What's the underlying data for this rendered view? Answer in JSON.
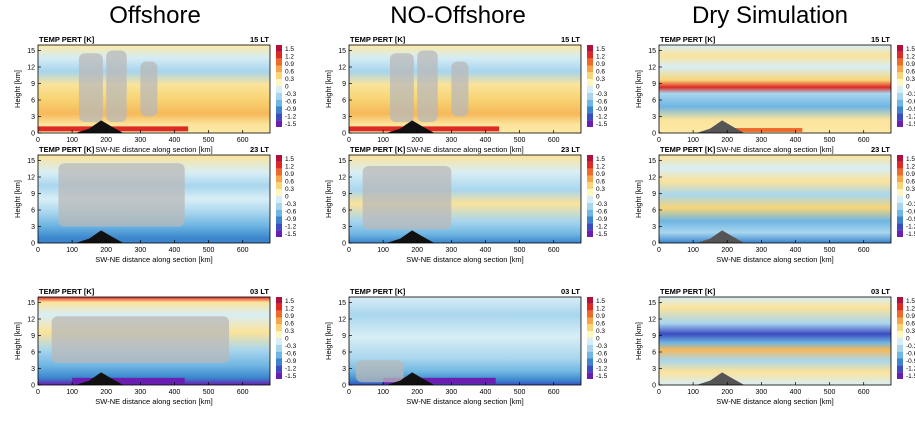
{
  "figure": {
    "columns": [
      "Offshore",
      "NO-Offshore",
      "Dry Simulation"
    ],
    "rows": [
      "15 LT",
      "23 LT",
      "03 LT"
    ],
    "panel_title": "TEMP PERT [K]",
    "ylabel": "Height [km]",
    "xlabel": "SW-NE distance along section [km]",
    "colorbar_labels": [
      "1.5",
      "1.2",
      "0.9",
      "0.6",
      "0.3",
      "0",
      "-0.3",
      "-0.6",
      "-0.9",
      "-1.2",
      "-1.5"
    ]
  },
  "chart_data": [
    {
      "type": "heatmap",
      "panel": "Offshore 15 LT",
      "title": "TEMP PERT [K]",
      "time": "15 LT",
      "xlabel": "SW-NE distance along section [km]",
      "ylabel": "Height [km]",
      "xlim": [
        0,
        680
      ],
      "ylim": [
        0,
        16
      ],
      "xticks": [
        0,
        100,
        200,
        300,
        400,
        500,
        600
      ],
      "yticks": [
        0,
        3,
        6,
        9,
        12,
        15
      ],
      "colorbar": [
        1.5,
        1.2,
        0.9,
        0.6,
        0.3,
        0,
        -0.3,
        -0.6,
        -0.9,
        -1.2,
        -1.5
      ]
    },
    {
      "type": "heatmap",
      "panel": "NO-Offshore 15 LT",
      "title": "TEMP PERT [K]",
      "time": "15 LT",
      "xlabel": "SW-NE distance along section [km]",
      "ylabel": "Height [km]",
      "xlim": [
        0,
        680
      ],
      "ylim": [
        0,
        16
      ],
      "xticks": [
        0,
        100,
        200,
        300,
        400,
        500,
        600
      ],
      "yticks": [
        0,
        3,
        6,
        9,
        12,
        15
      ],
      "colorbar": [
        1.5,
        1.2,
        0.9,
        0.6,
        0.3,
        0,
        -0.3,
        -0.6,
        -0.9,
        -1.2,
        -1.5
      ]
    },
    {
      "type": "heatmap",
      "panel": "Dry Simulation 15 LT",
      "title": "TEMP PERT [K]",
      "time": "15 LT",
      "xlabel": "SW-NE distance along section [km]",
      "ylabel": "Height [km]",
      "xlim": [
        0,
        680
      ],
      "ylim": [
        0,
        16
      ],
      "xticks": [
        0,
        100,
        200,
        300,
        400,
        500,
        600
      ],
      "yticks": [
        0,
        3,
        6,
        9,
        12,
        15
      ],
      "colorbar": [
        1.5,
        1.2,
        0.9,
        0.6,
        0.3,
        0,
        -0.3,
        -0.6,
        -0.9,
        -1.2,
        -1.5
      ]
    },
    {
      "type": "heatmap",
      "panel": "Offshore 23 LT",
      "title": "TEMP PERT [K]",
      "time": "23 LT",
      "xlabel": "SW-NE distance along section [km]",
      "ylabel": "Height [km]",
      "xlim": [
        0,
        680
      ],
      "ylim": [
        0,
        16
      ],
      "xticks": [
        0,
        100,
        200,
        300,
        400,
        500,
        600
      ],
      "yticks": [
        0,
        3,
        6,
        9,
        12,
        15
      ],
      "colorbar": [
        1.5,
        1.2,
        0.9,
        0.6,
        0.3,
        0,
        -0.3,
        -0.6,
        -0.9,
        -1.2,
        -1.5
      ]
    },
    {
      "type": "heatmap",
      "panel": "NO-Offshore 23 LT",
      "title": "TEMP PERT [K]",
      "time": "23 LT",
      "xlabel": "SW-NE distance along section [km]",
      "ylabel": "Height [km]",
      "xlim": [
        0,
        680
      ],
      "ylim": [
        0,
        16
      ],
      "xticks": [
        0,
        100,
        200,
        300,
        400,
        500,
        600
      ],
      "yticks": [
        0,
        3,
        6,
        9,
        12,
        15
      ],
      "colorbar": [
        1.5,
        1.2,
        0.9,
        0.6,
        0.3,
        0,
        -0.3,
        -0.6,
        -0.9,
        -1.2,
        -1.5
      ]
    },
    {
      "type": "heatmap",
      "panel": "Dry Simulation 23 LT",
      "title": "TEMP PERT [K]",
      "time": "23 LT",
      "xlabel": "SW-NE distance along section [km]",
      "ylabel": "Height [km]",
      "xlim": [
        0,
        680
      ],
      "ylim": [
        0,
        16
      ],
      "xticks": [
        0,
        100,
        200,
        300,
        400,
        500,
        600
      ],
      "yticks": [
        0,
        3,
        6,
        9,
        12,
        15
      ],
      "colorbar": [
        1.5,
        1.2,
        0.9,
        0.6,
        0.3,
        0,
        -0.3,
        -0.6,
        -0.9,
        -1.2,
        -1.5
      ]
    },
    {
      "type": "heatmap",
      "panel": "Offshore 03 LT",
      "title": "TEMP PERT [K]",
      "time": "03 LT",
      "xlabel": "SW-NE distance along section [km]",
      "ylabel": "Height [km]",
      "xlim": [
        0,
        680
      ],
      "ylim": [
        0,
        16
      ],
      "xticks": [
        0,
        100,
        200,
        300,
        400,
        500,
        600
      ],
      "yticks": [
        0,
        3,
        6,
        9,
        12,
        15
      ],
      "colorbar": [
        1.5,
        1.2,
        0.9,
        0.6,
        0.3,
        0,
        -0.3,
        -0.6,
        -0.9,
        -1.2,
        -1.5
      ]
    },
    {
      "type": "heatmap",
      "panel": "NO-Offshore 03 LT",
      "title": "TEMP PERT [K]",
      "time": "03 LT",
      "xlabel": "SW-NE distance along section [km]",
      "ylabel": "Height [km]",
      "xlim": [
        0,
        680
      ],
      "ylim": [
        0,
        16
      ],
      "xticks": [
        0,
        100,
        200,
        300,
        400,
        500,
        600
      ],
      "yticks": [
        0,
        3,
        6,
        9,
        12,
        15
      ],
      "colorbar": [
        1.5,
        1.2,
        0.9,
        0.6,
        0.3,
        0,
        -0.3,
        -0.6,
        -0.9,
        -1.2,
        -1.5
      ]
    },
    {
      "type": "heatmap",
      "panel": "Dry Simulation 03 LT",
      "title": "TEMP PERT [K]",
      "time": "03 LT",
      "xlabel": "SW-NE distance along section [km]",
      "ylabel": "Height [km]",
      "xlim": [
        0,
        680
      ],
      "ylim": [
        0,
        16
      ],
      "xticks": [
        0,
        100,
        200,
        300,
        400,
        500,
        600
      ],
      "yticks": [
        0,
        3,
        6,
        9,
        12,
        15
      ],
      "colorbar": [
        1.5,
        1.2,
        0.9,
        0.6,
        0.3,
        0,
        -0.3,
        -0.6,
        -0.9,
        -1.2,
        -1.5
      ]
    }
  ]
}
